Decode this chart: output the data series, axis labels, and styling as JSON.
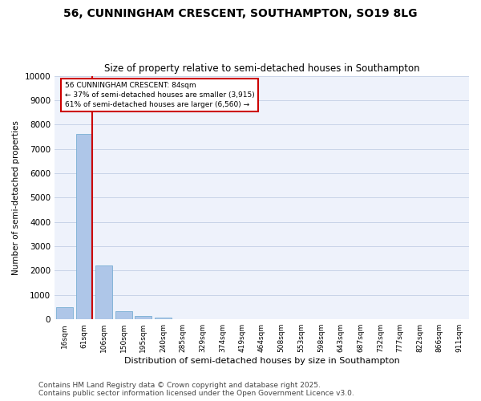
{
  "title": "56, CUNNINGHAM CRESCENT, SOUTHAMPTON, SO19 8LG",
  "subtitle": "Size of property relative to semi-detached houses in Southampton",
  "xlabel": "Distribution of semi-detached houses by size in Southampton",
  "ylabel": "Number of semi-detached properties",
  "categories": [
    "16sqm",
    "61sqm",
    "106sqm",
    "150sqm",
    "195sqm",
    "240sqm",
    "285sqm",
    "329sqm",
    "374sqm",
    "419sqm",
    "464sqm",
    "508sqm",
    "553sqm",
    "598sqm",
    "643sqm",
    "687sqm",
    "732sqm",
    "777sqm",
    "822sqm",
    "866sqm",
    "911sqm"
  ],
  "bar_values": [
    500,
    7600,
    2200,
    350,
    150,
    80,
    10,
    5,
    3,
    2,
    2,
    2,
    2,
    2,
    2,
    2,
    2,
    2,
    2,
    2,
    2
  ],
  "bar_color": "#aec6e8",
  "bar_edge_color": "#7aafd4",
  "property_sqm": 84,
  "pct_smaller": 37,
  "num_smaller": 3915,
  "pct_larger": 61,
  "num_larger": 6560,
  "annotation_box_color": "#cc0000",
  "ylim": [
    0,
    10000
  ],
  "yticks": [
    0,
    1000,
    2000,
    3000,
    4000,
    5000,
    6000,
    7000,
    8000,
    9000,
    10000
  ],
  "grid_color": "#c8d4e8",
  "background_color": "#eef2fb",
  "footer": "Contains HM Land Registry data © Crown copyright and database right 2025.\nContains public sector information licensed under the Open Government Licence v3.0.",
  "title_fontsize": 10,
  "subtitle_fontsize": 8.5,
  "footer_fontsize": 6.5
}
